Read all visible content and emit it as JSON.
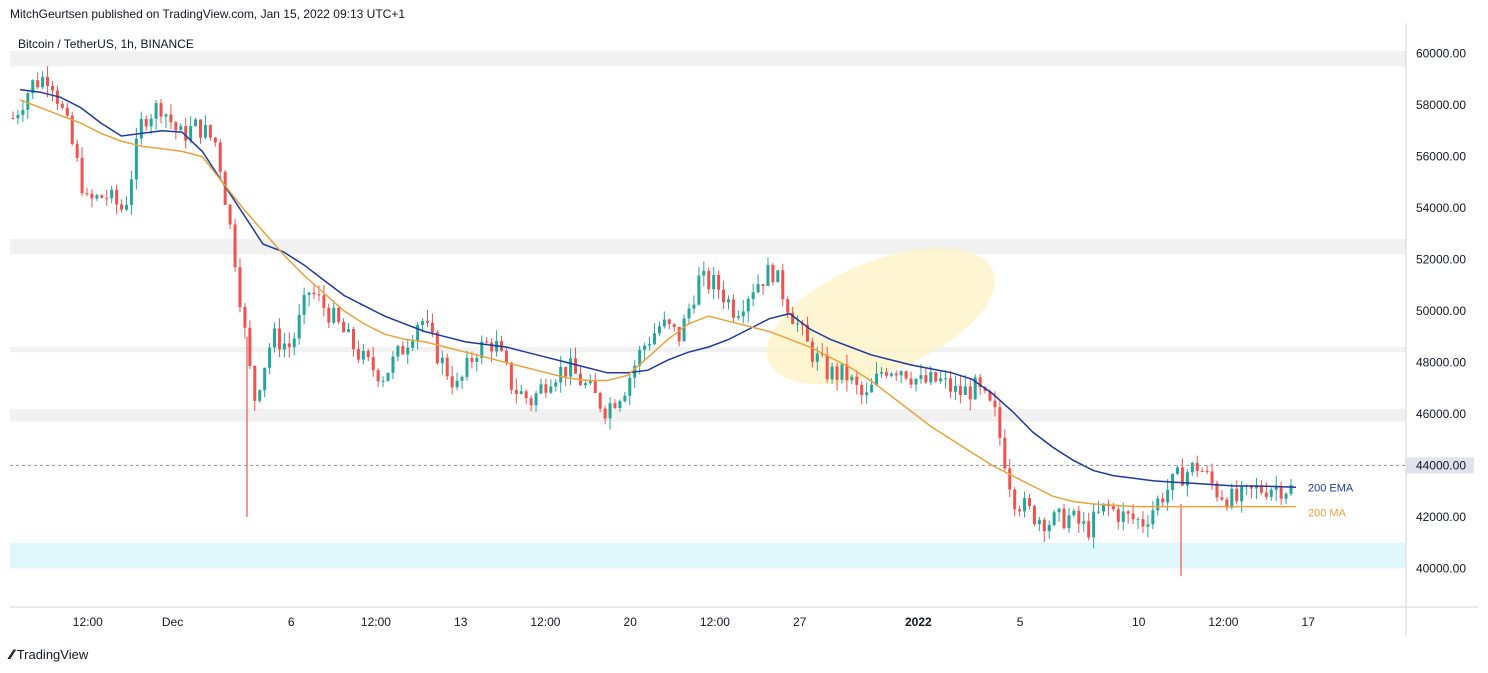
{
  "publisher": "MitchGeurtsen published on TradingView.com, Jan 15, 2022 09:13 UTC+1",
  "symbol_title": "Bitcoin / TetherUS, 1h, BINANCE",
  "brand": "TradingView",
  "colors": {
    "up": "#26a69a",
    "down": "#ef5350",
    "ema": "#1e3a9e",
    "ma": "#e8a33d",
    "zone": "#e8e8e8",
    "support_zone": "#dff6fb",
    "highlight": "#fdf3c4",
    "grid_line": "#9598a1",
    "current_price_bg": "#e0e3eb"
  },
  "chart_data": {
    "type": "candlestick",
    "title": "Bitcoin / TetherUS, 1h, BINANCE",
    "ylim": [
      38500,
      60800
    ],
    "y_ticks": [
      "60000.00",
      "58000.00",
      "56000.00",
      "54000.00",
      "52000.00",
      "50000.00",
      "48000.00",
      "46000.00",
      "44000.00",
      "42000.00",
      "40000.00"
    ],
    "y_tick_values": [
      60000,
      58000,
      56000,
      54000,
      52000,
      50000,
      48000,
      46000,
      44000,
      42000,
      40000
    ],
    "x_ticks": [
      "12:00",
      "Dec",
      "6",
      "12:00",
      "13",
      "12:00",
      "20",
      "12:00",
      "27",
      "2022",
      "5",
      "10",
      "12:00",
      "17"
    ],
    "x_tick_index": [
      4,
      9,
      16,
      21,
      26,
      31,
      36,
      41,
      46,
      53,
      59,
      66,
      71,
      76
    ],
    "current_price_label": "44000.00",
    "current_price": 44000,
    "series": [
      {
        "name": "200 EMA",
        "values": [
          58600,
          58500,
          58300,
          57900,
          57300,
          56800,
          56900,
          57000,
          56950,
          56200,
          55000,
          53800,
          52600,
          52300,
          51800,
          51200,
          50600,
          50200,
          49800,
          49500,
          49200,
          49000,
          48800,
          48700,
          48600,
          48400,
          48200,
          48000,
          47800,
          47600,
          47600,
          47700,
          48100,
          48400,
          48600,
          48900,
          49300,
          49700,
          49900,
          49300,
          48900,
          48600,
          48300,
          48100,
          47900,
          47750,
          47600,
          47350,
          46800,
          46100,
          45300,
          44700,
          44200,
          43800,
          43600,
          43500,
          43400,
          43350,
          43300,
          43250,
          43200,
          43200,
          43180,
          43150
        ]
      },
      {
        "name": "200 MA",
        "values": [
          58200,
          57900,
          57600,
          57300,
          56900,
          56600,
          56400,
          56300,
          56200,
          56000,
          55000,
          54000,
          53100,
          52200,
          51400,
          50700,
          50000,
          49500,
          49100,
          48900,
          48800,
          48600,
          48400,
          48200,
          48000,
          47800,
          47600,
          47400,
          47300,
          47300,
          47500,
          48200,
          48900,
          49500,
          49800,
          49600,
          49400,
          49200,
          48900,
          48600,
          48200,
          47800,
          47300,
          46700,
          46100,
          45500,
          45000,
          44500,
          44000,
          43600,
          43200,
          42800,
          42600,
          42500,
          42450,
          42400,
          42400,
          42400,
          42400,
          42400,
          42400,
          42400,
          42400,
          42400
        ]
      }
    ],
    "zones": [
      {
        "from": 59500,
        "to": 60100,
        "kind": "resistance"
      },
      {
        "from": 52200,
        "to": 52800,
        "kind": "resistance"
      },
      {
        "from": 48400,
        "to": 48600,
        "kind": "resistance"
      },
      {
        "from": 45700,
        "to": 46200,
        "kind": "resistance"
      },
      {
        "from": 40000,
        "to": 41000,
        "kind": "support"
      }
    ],
    "highlight_region": {
      "x_from": 38,
      "x_to": 47,
      "y_center": 49800,
      "label": ""
    },
    "line_labels": [
      "200 EMA",
      "200 MA"
    ]
  }
}
